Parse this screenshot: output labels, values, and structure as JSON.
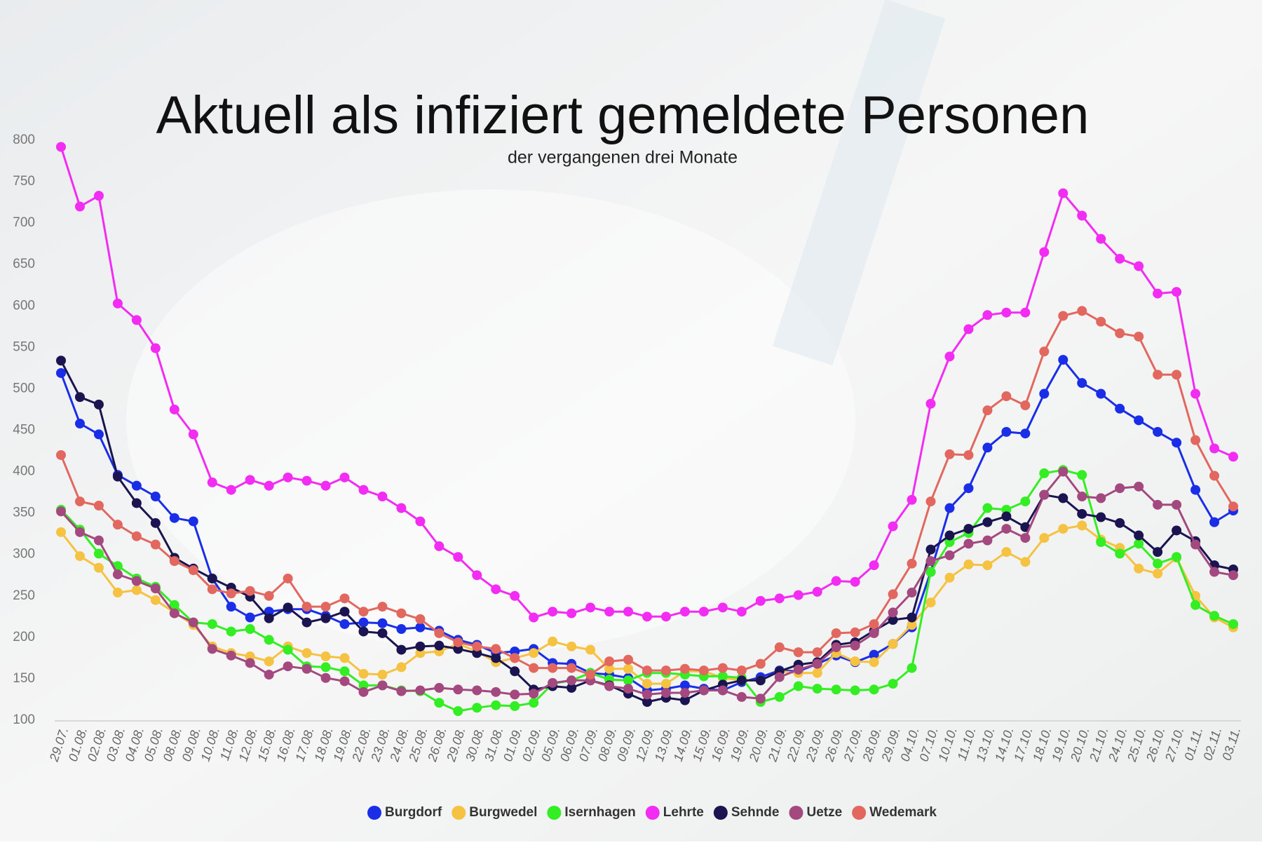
{
  "chart_data": {
    "type": "line",
    "title": "Aktuell als infiziert gemeldete Personen",
    "subtitle": "der vergangenen drei Monate",
    "categories": [
      "29.07.",
      "01.08.",
      "02.08.",
      "03.08.",
      "04.08.",
      "05.08.",
      "08.08.",
      "09.08.",
      "10.08.",
      "11.08.",
      "12.08.",
      "15.08.",
      "16.08.",
      "17.08.",
      "18.08.",
      "19.08.",
      "22.08.",
      "23.08.",
      "24.08.",
      "25.08.",
      "26.08.",
      "29.08.",
      "30.08.",
      "31.08.",
      "01.09.",
      "02.09.",
      "05.09.",
      "06.09.",
      "07.09.",
      "08.09.",
      "09.09.",
      "12.09.",
      "13.09.",
      "14.09.",
      "15.09.",
      "16.09.",
      "19.09.",
      "20.09.",
      "21.09.",
      "22.09.",
      "23.09.",
      "26.09.",
      "27.09.",
      "28.09.",
      "29.09.",
      "04.10.",
      "07.10.",
      "10.10.",
      "11.10.",
      "13.10.",
      "14.10.",
      "17.10.",
      "18.10.",
      "19.10.",
      "20.10.",
      "21.10.",
      "24.10.",
      "25.10.",
      "26.10.",
      "27.10.",
      "01.11.",
      "02.11.",
      "03.11."
    ],
    "series": [
      {
        "name": "Burgdorf",
        "color": "#1a2ee8",
        "values": [
          519,
          458,
          445,
          396,
          383,
          370,
          344,
          340,
          271,
          237,
          224,
          231,
          234,
          234,
          226,
          216,
          218,
          217,
          210,
          212,
          208,
          197,
          191,
          181,
          183,
          186,
          169,
          168,
          157,
          155,
          151,
          136,
          138,
          142,
          138,
          136,
          146,
          152,
          160,
          159,
          168,
          178,
          170,
          179,
          192,
          212,
          279,
          356,
          380,
          429,
          448,
          446,
          494,
          535,
          507,
          494,
          476,
          462,
          448,
          435,
          378,
          339,
          353
        ]
      },
      {
        "name": "Burgwedel",
        "color": "#f5c242",
        "values": [
          327,
          298,
          284,
          254,
          257,
          245,
          230,
          215,
          189,
          181,
          177,
          171,
          189,
          181,
          177,
          175,
          156,
          155,
          164,
          181,
          183,
          192,
          183,
          170,
          175,
          181,
          195,
          189,
          185,
          162,
          162,
          144,
          144,
          159,
          159,
          151,
          148,
          148,
          159,
          157,
          157,
          181,
          171,
          170,
          192,
          215,
          242,
          272,
          288,
          287,
          303,
          291,
          320,
          331,
          335,
          318,
          308,
          283,
          277,
          296,
          250,
          224,
          212
        ]
      },
      {
        "name": "Isernhagen",
        "color": "#33ee22",
        "values": [
          354,
          330,
          301,
          286,
          271,
          261,
          239,
          218,
          216,
          207,
          210,
          197,
          185,
          165,
          164,
          159,
          142,
          142,
          136,
          135,
          121,
          111,
          115,
          118,
          117,
          121,
          144,
          148,
          157,
          149,
          148,
          157,
          157,
          155,
          153,
          153,
          151,
          122,
          128,
          141,
          138,
          137,
          136,
          137,
          144,
          163,
          279,
          315,
          326,
          356,
          354,
          364,
          398,
          402,
          396,
          315,
          301,
          313,
          289,
          297,
          239,
          226,
          216
        ]
      },
      {
        "name": "Lehrte",
        "color": "#f22cf2",
        "values": [
          792,
          720,
          733,
          603,
          583,
          549,
          475,
          445,
          387,
          378,
          390,
          383,
          393,
          389,
          383,
          393,
          378,
          370,
          356,
          340,
          310,
          297,
          275,
          258,
          250,
          224,
          231,
          229,
          236,
          231,
          231,
          225,
          225,
          231,
          231,
          236,
          231,
          244,
          247,
          251,
          255,
          268,
          267,
          287,
          334,
          366,
          482,
          539,
          572,
          589,
          592,
          592,
          665,
          736,
          709,
          681,
          657,
          648,
          615,
          617,
          494,
          428,
          418
        ]
      },
      {
        "name": "Sehnde",
        "color": "#1a1550",
        "values": [
          534,
          490,
          481,
          394,
          362,
          338,
          296,
          283,
          271,
          260,
          249,
          223,
          236,
          218,
          223,
          231,
          207,
          205,
          185,
          189,
          190,
          186,
          181,
          175,
          159,
          137,
          141,
          139,
          148,
          142,
          132,
          122,
          127,
          124,
          136,
          143,
          148,
          148,
          159,
          167,
          170,
          191,
          194,
          208,
          221,
          224,
          306,
          323,
          331,
          339,
          346,
          333,
          372,
          368,
          349,
          345,
          338,
          323,
          303,
          329,
          316,
          287,
          282
        ]
      },
      {
        "name": "Uetze",
        "color": "#a4497f",
        "values": [
          352,
          327,
          317,
          276,
          268,
          259,
          229,
          218,
          186,
          178,
          169,
          155,
          165,
          162,
          151,
          147,
          134,
          142,
          135,
          136,
          139,
          137,
          136,
          134,
          131,
          132,
          145,
          148,
          148,
          141,
          138,
          131,
          133,
          133,
          136,
          136,
          128,
          126,
          152,
          161,
          168,
          188,
          190,
          205,
          230,
          254,
          292,
          299,
          313,
          317,
          331,
          320,
          372,
          400,
          370,
          368,
          380,
          382,
          360,
          360,
          312,
          279,
          275
        ]
      },
      {
        "name": "Wedemark",
        "color": "#e2675f",
        "values": [
          420,
          364,
          359,
          336,
          322,
          312,
          292,
          281,
          258,
          253,
          256,
          250,
          271,
          237,
          237,
          247,
          231,
          237,
          229,
          222,
          205,
          194,
          189,
          186,
          175,
          163,
          163,
          163,
          155,
          171,
          173,
          160,
          160,
          162,
          160,
          163,
          160,
          168,
          188,
          182,
          182,
          205,
          206,
          216,
          252,
          289,
          364,
          421,
          420,
          474,
          491,
          480,
          545,
          588,
          594,
          581,
          567,
          563,
          517,
          517,
          438,
          395,
          358
        ]
      }
    ],
    "ylim": [
      100,
      800
    ],
    "yticks": [
      100,
      150,
      200,
      250,
      300,
      350,
      400,
      450,
      500,
      550,
      600,
      650,
      700,
      750,
      800
    ],
    "grid": false,
    "legend": "bottom"
  }
}
